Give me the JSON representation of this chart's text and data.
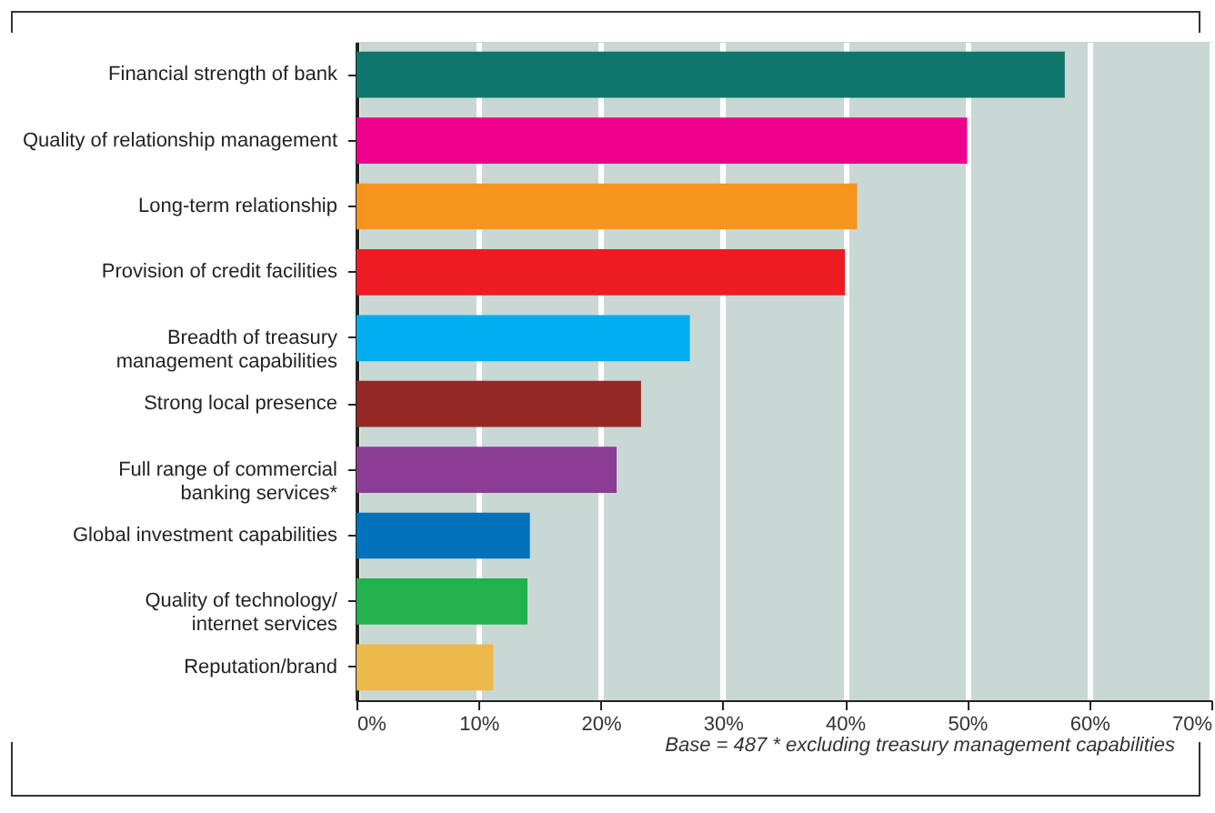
{
  "chart_data": {
    "type": "bar",
    "orientation": "horizontal",
    "categories": [
      "Financial strength of bank",
      "Quality of relationship management",
      "Long-term relationship",
      "Provision of credit facilities",
      "Breadth of treasury\nmanagement capabilities",
      "Strong local presence",
      "Full range of commercial\nbanking services*",
      "Global investment capabilities",
      "Quality of technology/\ninternet services",
      "Reputation/brand"
    ],
    "values": [
      58,
      50,
      41,
      40,
      27.3,
      23.3,
      21.3,
      14.2,
      14,
      11.2
    ],
    "colors": [
      "#10766b",
      "#ec008c",
      "#f7941d",
      "#ed1c24",
      "#00aeef",
      "#942826",
      "#8b3d95",
      "#0071bb",
      "#22b14c",
      "#ecb94a"
    ],
    "xlim": [
      0,
      70
    ],
    "xticks": [
      {
        "value": 0,
        "label": "0%"
      },
      {
        "value": 10,
        "label": "10%"
      },
      {
        "value": 20,
        "label": "20%"
      },
      {
        "value": 30,
        "label": "30%"
      },
      {
        "value": 40,
        "label": "40%"
      },
      {
        "value": 50,
        "label": "50%"
      },
      {
        "value": 60,
        "label": "60%"
      },
      {
        "value": 70,
        "label": "70%"
      }
    ],
    "grid": "x",
    "annotations": [
      "Base = 487 * excluding treasury management capabilities"
    ]
  }
}
